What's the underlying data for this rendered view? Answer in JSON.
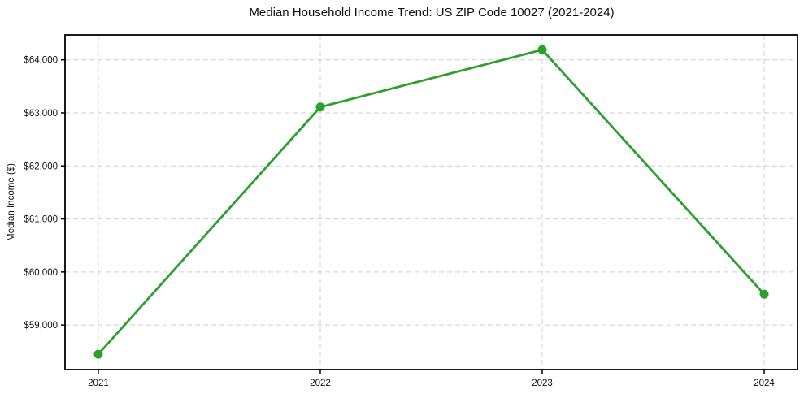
{
  "chart_data": {
    "type": "line",
    "title": "Median Household Income Trend: US ZIP Code 10027 (2021-2024)",
    "xlabel": "",
    "ylabel": "Median Income ($)",
    "x": [
      2021,
      2022,
      2023,
      2024
    ],
    "values": [
      58450,
      63110,
      64190,
      59580
    ],
    "xticks": [
      2021,
      2022,
      2023,
      2024
    ],
    "xtick_labels": [
      "2021",
      "2022",
      "2023",
      "2024"
    ],
    "yticks": [
      59000,
      60000,
      61000,
      62000,
      63000,
      64000
    ],
    "ytick_labels": [
      "$59,000",
      "$60,000",
      "$61,000",
      "$62,000",
      "$63,000",
      "$64,000"
    ],
    "xlim": [
      2020.85,
      2024.15
    ],
    "ylim": [
      58160,
      64470
    ],
    "grid": true,
    "legend_position": "none",
    "line_color": "#2ca02c",
    "marker": "circle",
    "grid_color": "#cdcdcd",
    "spine_color": "#000000",
    "tick_label_color": "#111111"
  }
}
